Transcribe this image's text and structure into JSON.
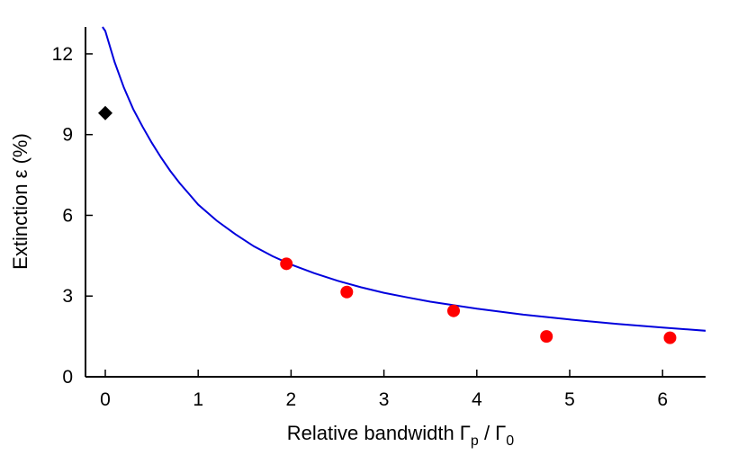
{
  "chart_data": {
    "type": "scatter",
    "xlabel": "Relative bandwidth Γ",
    "xlabel_sub_p": "p",
    "xlabel_mid": " / Γ",
    "xlabel_sub_0": "0",
    "ylabel": "Extinction ε (%)",
    "xlim": [
      -0.2,
      6.5
    ],
    "ylim": [
      0,
      13
    ],
    "x_ticks": [
      "0",
      "1",
      "2",
      "3",
      "4",
      "5",
      "6"
    ],
    "y_ticks": [
      "0",
      "3",
      "6",
      "9",
      "12"
    ],
    "grid": false,
    "series": [
      {
        "type": "scatter",
        "marker": "circle",
        "color": "#ff0000",
        "points": [
          {
            "x": 1.95,
            "y": 4.2
          },
          {
            "x": 2.6,
            "y": 3.15
          },
          {
            "x": 3.75,
            "y": 2.45
          },
          {
            "x": 4.75,
            "y": 1.5
          },
          {
            "x": 6.08,
            "y": 1.45
          }
        ]
      },
      {
        "type": "scatter",
        "marker": "diamond",
        "color": "#000000",
        "points": [
          {
            "x": 0.0,
            "y": 9.8
          }
        ]
      },
      {
        "type": "line",
        "color": "#0000dd",
        "points": [
          {
            "x": -0.03,
            "y": 13.0
          },
          {
            "x": 0.0,
            "y": 12.85
          },
          {
            "x": 0.1,
            "y": 11.7
          },
          {
            "x": 0.2,
            "y": 10.75
          },
          {
            "x": 0.3,
            "y": 9.95
          },
          {
            "x": 0.4,
            "y": 9.3
          },
          {
            "x": 0.5,
            "y": 8.7
          },
          {
            "x": 0.6,
            "y": 8.15
          },
          {
            "x": 0.7,
            "y": 7.65
          },
          {
            "x": 0.8,
            "y": 7.2
          },
          {
            "x": 0.9,
            "y": 6.8
          },
          {
            "x": 1.0,
            "y": 6.4
          },
          {
            "x": 1.2,
            "y": 5.8
          },
          {
            "x": 1.4,
            "y": 5.3
          },
          {
            "x": 1.6,
            "y": 4.85
          },
          {
            "x": 1.8,
            "y": 4.48
          },
          {
            "x": 2.0,
            "y": 4.17
          },
          {
            "x": 2.25,
            "y": 3.85
          },
          {
            "x": 2.5,
            "y": 3.57
          },
          {
            "x": 2.75,
            "y": 3.33
          },
          {
            "x": 3.0,
            "y": 3.12
          },
          {
            "x": 3.25,
            "y": 2.95
          },
          {
            "x": 3.5,
            "y": 2.79
          },
          {
            "x": 3.75,
            "y": 2.66
          },
          {
            "x": 4.0,
            "y": 2.53
          },
          {
            "x": 4.5,
            "y": 2.31
          },
          {
            "x": 5.0,
            "y": 2.13
          },
          {
            "x": 5.5,
            "y": 1.97
          },
          {
            "x": 6.0,
            "y": 1.83
          },
          {
            "x": 6.5,
            "y": 1.7
          }
        ]
      }
    ]
  }
}
